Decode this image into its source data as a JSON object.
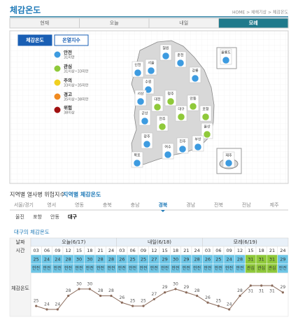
{
  "header": {
    "title": "체감온도",
    "breadcrumb": "HOME > 재해기상 > 체감온도"
  },
  "tabs": [
    "현재",
    "오늘",
    "내일",
    "모레"
  ],
  "active_tab": 3,
  "map": {
    "buttons": [
      "체감온도",
      "온열지수"
    ],
    "active_button": 0,
    "legend": [
      {
        "label": "안전",
        "range": "31미만",
        "color": "#3d9be0"
      },
      {
        "label": "관심",
        "range": "31이상~33미만",
        "color": "#8fc93a"
      },
      {
        "label": "주의",
        "range": "33이상~35미만",
        "color": "#f0d020"
      },
      {
        "label": "경고",
        "range": "35이상~38미만",
        "color": "#f08a20"
      },
      {
        "label": "위험",
        "range": "38이상",
        "color": "#a01010"
      }
    ],
    "cities": [
      {
        "name": "철원",
        "level": 0
      },
      {
        "name": "춘천",
        "level": 0
      },
      {
        "name": "울릉도",
        "level": 0
      },
      {
        "name": "인천",
        "level": 0
      },
      {
        "name": "서울",
        "level": 0
      },
      {
        "name": "강릉",
        "level": 0
      },
      {
        "name": "수원",
        "level": 0
      },
      {
        "name": "서산",
        "level": 0
      },
      {
        "name": "청주",
        "level": 1
      },
      {
        "name": "안동",
        "level": 1
      },
      {
        "name": "대전",
        "level": 1
      },
      {
        "name": "대구",
        "level": 1
      },
      {
        "name": "포항",
        "level": 1
      },
      {
        "name": "군산",
        "level": 0
      },
      {
        "name": "전주",
        "level": 1
      },
      {
        "name": "울산",
        "level": 1
      },
      {
        "name": "광주",
        "level": 0
      },
      {
        "name": "진주",
        "level": 0
      },
      {
        "name": "부산",
        "level": 0
      },
      {
        "name": "목포",
        "level": 0
      },
      {
        "name": "여수",
        "level": 0
      },
      {
        "name": "제주",
        "level": 0
      }
    ]
  },
  "section": {
    "title": "지역별 열사병 위험지수",
    "subtitle": "지역별 체감온도"
  },
  "regions": [
    "서울/경기",
    "영서",
    "영동",
    "충북",
    "충남",
    "경북",
    "경남",
    "전북",
    "전남",
    "제주"
  ],
  "active_region": 5,
  "subregions": [
    "울진",
    "포항",
    "안동",
    "대구"
  ],
  "active_subregion": 3,
  "table": {
    "title": "대구의 체감온도",
    "row_labels": [
      "날짜",
      "시간",
      "체감온도"
    ],
    "dates": [
      "오늘(6/17)",
      "내일(6/18)",
      "모레(6/19)"
    ],
    "times": [
      "03",
      "06",
      "09",
      "12",
      "15",
      "18",
      "21",
      "24",
      "03",
      "06",
      "09",
      "12",
      "15",
      "18",
      "21",
      "24",
      "03",
      "06",
      "09",
      "12",
      "15",
      "18",
      "21",
      "24"
    ],
    "values": [
      25,
      24,
      24,
      28,
      30,
      30,
      28,
      28,
      26,
      25,
      25,
      27,
      29,
      30,
      29,
      28,
      26,
      25,
      24,
      28,
      31,
      31,
      31,
      29
    ],
    "status": [
      "안전",
      "안전",
      "안전",
      "안전",
      "안전",
      "안전",
      "안전",
      "안전",
      "안전",
      "안전",
      "안전",
      "안전",
      "안전",
      "안전",
      "안전",
      "안전",
      "안전",
      "안전",
      "안전",
      "안전",
      "관심",
      "관심",
      "관심",
      "안전"
    ]
  }
}
